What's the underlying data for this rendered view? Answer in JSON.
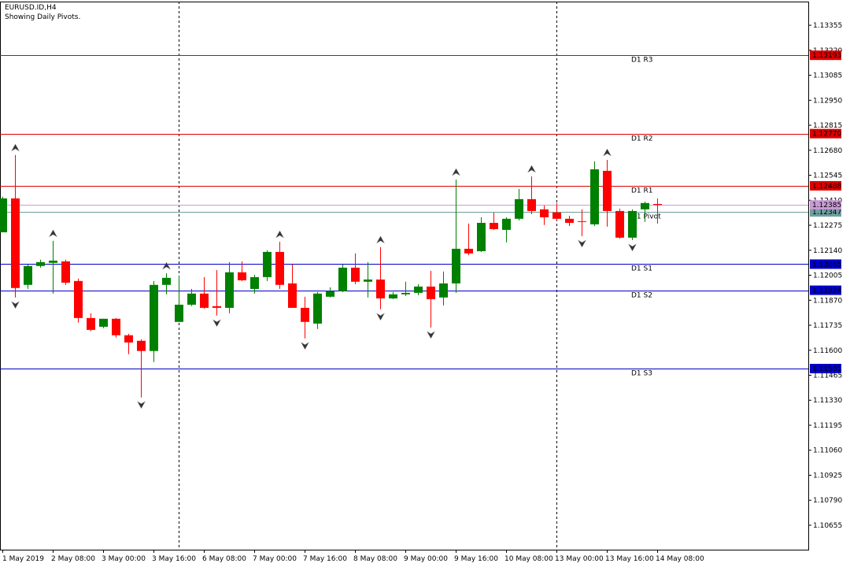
{
  "chart_data": {
    "type": "candlestick",
    "title": "EURUSD.ID,H4",
    "subtitle": "Showing Daily Pivots.",
    "categories": [
      "1 May 2019",
      null,
      null,
      null,
      "2 May 08:00",
      null,
      null,
      null,
      "3 May 00:00",
      null,
      null,
      null,
      "3 May 16:00",
      null,
      null,
      null,
      "6 May 08:00",
      null,
      null,
      null,
      "7 May 00:00",
      null,
      null,
      null,
      "7 May 16:00",
      null,
      null,
      null,
      "8 May 08:00",
      null,
      null,
      null,
      "9 May 00:00",
      null,
      null,
      null,
      "9 May 16:00",
      null,
      null,
      null,
      "10 May 08:00",
      null,
      null,
      null,
      "13 May 00:00",
      null,
      null,
      null,
      "13 May 16:00",
      null,
      null,
      null,
      "14 May 08:00"
    ],
    "open": [
      1.12237,
      1.1242,
      1.11953,
      1.12055,
      1.12072,
      1.1208,
      1.11974,
      1.11774,
      1.11727,
      1.1177,
      1.11681,
      1.11651,
      1.11596,
      1.11953,
      1.11753,
      1.11846,
      1.11906,
      1.11838,
      1.11829,
      1.12021,
      1.11931,
      1.11995,
      1.12131,
      1.11961,
      1.11829,
      1.11744,
      1.11889,
      1.11919,
      1.12046,
      1.1197,
      1.11982,
      1.1188,
      1.11902,
      1.1191,
      1.11944,
      1.11885,
      1.11961,
      1.12148,
      1.12135,
      1.12288,
      1.1225,
      1.1231,
      1.12416,
      1.12361,
      1.12344,
      1.1231,
      1.12297,
      1.1228,
      1.12569,
      1.12352,
      1.12208,
      1.12361,
      1.1239
    ],
    "high": [
      1.12429,
      1.12654,
      1.12063,
      1.12089,
      1.12191,
      1.12089,
      1.11987,
      1.118,
      1.1177,
      1.11774,
      1.11689,
      1.11659,
      1.11974,
      1.12016,
      1.12004,
      1.11931,
      1.11995,
      1.12033,
      1.12076,
      1.1208,
      1.12008,
      1.1214,
      1.12186,
      1.12063,
      1.11889,
      1.11914,
      1.1194,
      1.12063,
      1.12123,
      1.12076,
      1.12157,
      1.11914,
      1.1197,
      1.11957,
      1.12029,
      1.12025,
      1.12522,
      1.12284,
      1.12318,
      1.12344,
      1.12318,
      1.12471,
      1.12539,
      1.12382,
      1.12395,
      1.12327,
      1.12361,
      1.1262,
      1.12628,
      1.12365,
      1.12361,
      1.12403,
      1.1242
    ],
    "low": [
      1.12237,
      1.11885,
      1.11931,
      1.12046,
      1.11906,
      1.11953,
      1.11749,
      1.11702,
      1.11719,
      1.11668,
      1.11579,
      1.11345,
      1.11536,
      1.11902,
      1.11753,
      1.11838,
      1.11825,
      1.11787,
      1.118,
      1.11974,
      1.11906,
      1.11974,
      1.11931,
      1.11829,
      1.11664,
      1.11715,
      1.11885,
      1.11914,
      1.11957,
      1.11885,
      1.11821,
      1.11876,
      1.11893,
      1.11897,
      1.11723,
      1.11842,
      1.1191,
      1.12114,
      1.12131,
      1.1225,
      1.12182,
      1.12301,
      1.12335,
      1.12276,
      1.12301,
      1.12271,
      1.12216,
      1.12271,
      1.12267,
      1.12203,
      1.12195,
      1.12293,
      1.12284
    ],
    "close": [
      1.1242,
      1.11936,
      1.12055,
      1.12076,
      1.12084,
      1.11965,
      1.11774,
      1.1171,
      1.1177,
      1.11681,
      1.11642,
      1.11596,
      1.11953,
      1.11991,
      1.11846,
      1.11906,
      1.11829,
      1.11829,
      1.12021,
      1.11978,
      1.11995,
      1.12131,
      1.11953,
      1.11829,
      1.11753,
      1.11906,
      1.11919,
      1.12046,
      1.1197,
      1.11982,
      1.1188,
      1.11902,
      1.1191,
      1.11944,
      1.11876,
      1.11961,
      1.12148,
      1.12123,
      1.12288,
      1.12254,
      1.1231,
      1.12416,
      1.12352,
      1.12318,
      1.1231,
      1.12288,
      1.12293,
      1.12577,
      1.12352,
      1.12208,
      1.12352,
      1.12395,
      1.12385
    ],
    "up_color": "#008000",
    "down_color": "#ff0000",
    "ylim": [
      1.10523,
      1.13483
    ],
    "yticks": [
      1.13355,
      {
        "value": 1.1322,
        "label": "1.13220"
      },
      1.13085,
      {
        "value": 1.1295,
        "label": "1.12950"
      },
      1.12815,
      {
        "value": 1.1268,
        "label": "1.12680"
      },
      1.12545,
      {
        "value": 1.1241,
        "label": "1.12410"
      },
      1.12275,
      {
        "value": 1.1214,
        "label": "1.12140"
      },
      1.12005,
      {
        "value": 1.1187,
        "label": "1.11870"
      },
      1.11735,
      {
        "value": 1.116,
        "label": "1.11600"
      },
      1.11465,
      {
        "value": 1.1133,
        "label": "1.11330"
      },
      1.11195,
      {
        "value": 1.1106,
        "label": "1.11060"
      },
      1.10925,
      {
        "value": 1.1079,
        "label": "1.10790"
      },
      1.10655
    ],
    "pivots": [
      {
        "name": "D1 R3",
        "value": 1.13193,
        "label": "1.13193",
        "color": "#dd0000"
      },
      {
        "name": "D1 R2",
        "value": 1.1277,
        "label": "1.12770",
        "color": "#dd0000"
      },
      {
        "name": "D1 R1",
        "value": 1.12488,
        "label": "1.12488",
        "color": "#dd0000"
      },
      {
        "name": "D1 Pivot",
        "value": 1.12347,
        "label": "1.12347",
        "color": "#6f9f9f"
      },
      {
        "name": "D1 S1",
        "value": 1.12065,
        "label": "1.12065",
        "color": "#0000c8"
      },
      {
        "name": "D1 S2",
        "value": 1.11924,
        "label": "1.11924",
        "color": "#0000c8"
      },
      {
        "name": "D1 S3",
        "value": 1.11501,
        "label": "1.11501",
        "color": "#0000c8"
      }
    ],
    "bid": {
      "value": 1.12385,
      "label": "1.12385",
      "color": "#c89ad4"
    },
    "separators": [
      14,
      44
    ],
    "fractals_up": [
      1,
      4,
      13,
      22,
      30,
      36,
      42,
      48
    ],
    "fractals_down": [
      1,
      11,
      17,
      24,
      30,
      34,
      46,
      50
    ]
  }
}
